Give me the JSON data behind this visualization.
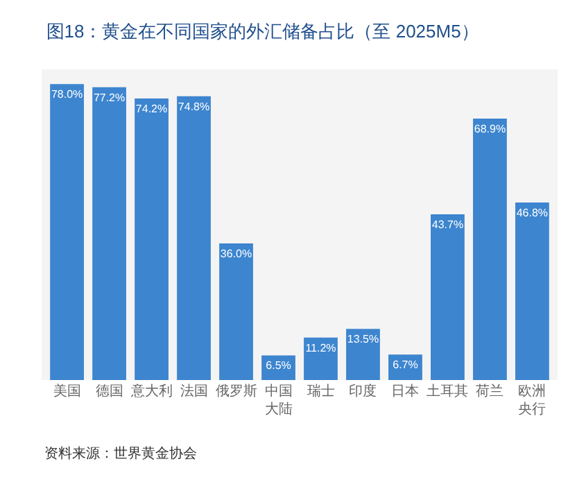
{
  "chart_data": {
    "type": "bar",
    "title": "图18：黄金在不同国家的外汇储备占比（至 2025M5）",
    "categories": [
      "美国",
      "德国",
      "意大利",
      "法国",
      "俄罗斯",
      "中国大陆",
      "瑞士",
      "印度",
      "日本",
      "土耳其",
      "荷兰",
      "欧洲央行"
    ],
    "values": [
      78.0,
      77.2,
      74.2,
      74.8,
      36.0,
      6.5,
      11.2,
      13.5,
      6.7,
      43.7,
      68.9,
      46.8
    ],
    "value_labels": [
      "78.0%",
      "77.2%",
      "74.2%",
      "74.8%",
      "36.0%",
      "6.5%",
      "11.2%",
      "13.5%",
      "6.7%",
      "43.7%",
      "68.9%",
      "46.8%"
    ],
    "color": "#3d85cf",
    "grid": false,
    "annotations": [
      "资料来源：世界黄金协会"
    ]
  }
}
